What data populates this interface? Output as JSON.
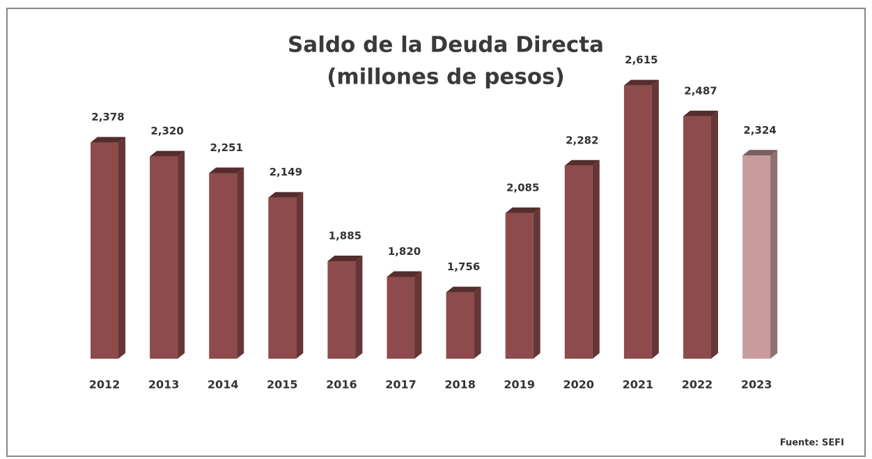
{
  "chart_data": {
    "type": "bar3d",
    "title": "Saldo de la Deuda Directa",
    "subtitle": "(millones de pesos)",
    "source": "Fuente: SEFI",
    "categories": [
      "2012",
      "2013",
      "2014",
      "2015",
      "2016",
      "2017",
      "2018",
      "2019",
      "2020",
      "2021",
      "2022",
      "2023"
    ],
    "values": [
      2378,
      2320,
      2251,
      2149,
      1885,
      1820,
      1756,
      2085,
      2282,
      2615,
      2487,
      2324
    ],
    "value_labels": [
      "2,378",
      "2,320",
      "2,251",
      "2,149",
      "1,885",
      "1,820",
      "1,756",
      "2,085",
      "2,282",
      "2,615",
      "2,487",
      "2,324"
    ],
    "colors": [
      "#8e4b4b",
      "#8e4b4b",
      "#8e4b4b",
      "#8e4b4b",
      "#8e4b4b",
      "#8e4b4b",
      "#8e4b4b",
      "#8e4b4b",
      "#8e4b4b",
      "#8e4b4b",
      "#8e4b4b",
      "#c89c9c"
    ],
    "ylim": [
      1480,
      2750
    ]
  }
}
